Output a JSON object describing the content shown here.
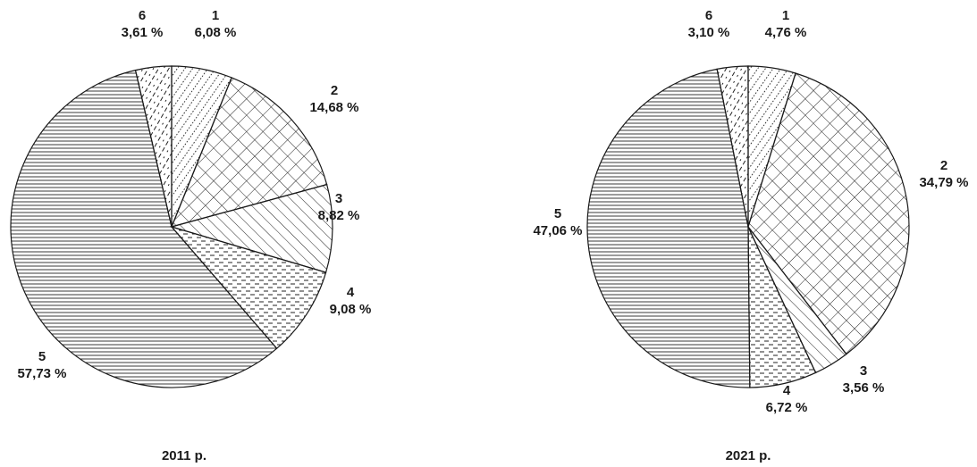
{
  "chart_data": [
    {
      "type": "pie",
      "title": "2011 р.",
      "slices": [
        {
          "label": "1",
          "value": 6.08,
          "value_text": "6,08 %",
          "pattern": "dots"
        },
        {
          "label": "2",
          "value": 14.68,
          "value_text": "14,68 %",
          "pattern": "crosshatch"
        },
        {
          "label": "3",
          "value": 8.82,
          "value_text": "8,82 %",
          "pattern": "diagonal"
        },
        {
          "label": "4",
          "value": 9.08,
          "value_text": "9,08 %",
          "pattern": "dashes"
        },
        {
          "label": "5",
          "value": 57.73,
          "value_text": "57,73 %",
          "pattern": "horizontal"
        },
        {
          "label": "6",
          "value": 3.61,
          "value_text": "3,61 %",
          "pattern": "slashes"
        }
      ]
    },
    {
      "type": "pie",
      "title": "2021 р.",
      "slices": [
        {
          "label": "1",
          "value": 4.76,
          "value_text": "4,76 %",
          "pattern": "dots"
        },
        {
          "label": "2",
          "value": 34.79,
          "value_text": "34,79 %",
          "pattern": "crosshatch"
        },
        {
          "label": "3",
          "value": 3.56,
          "value_text": "3,56 %",
          "pattern": "diagonal"
        },
        {
          "label": "4",
          "value": 6.72,
          "value_text": "6,72 %",
          "pattern": "dashes"
        },
        {
          "label": "5",
          "value": 47.06,
          "value_text": "47,06 %",
          "pattern": "horizontal"
        },
        {
          "label": "6",
          "value": 3.1,
          "value_text": "3,10 %",
          "pattern": "slashes"
        }
      ]
    }
  ]
}
